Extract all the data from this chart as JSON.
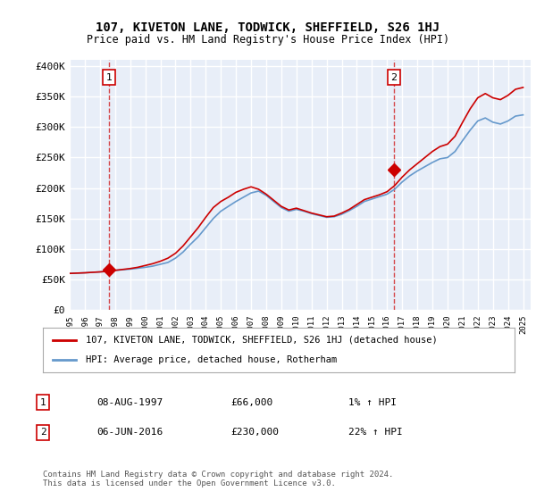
{
  "title": "107, KIVETON LANE, TODWICK, SHEFFIELD, S26 1HJ",
  "subtitle": "Price paid vs. HM Land Registry's House Price Index (HPI)",
  "legend_line1": "107, KIVETON LANE, TODWICK, SHEFFIELD, S26 1HJ (detached house)",
  "legend_line2": "HPI: Average price, detached house, Rotherham",
  "annotation1": {
    "label": "1",
    "date": "08-AUG-1997",
    "price": "£66,000",
    "hpi": "1% ↑ HPI",
    "year": 1997.6,
    "value": 66000
  },
  "annotation2": {
    "label": "2",
    "date": "06-JUN-2016",
    "price": "£230,000",
    "hpi": "22% ↑ HPI",
    "year": 2016.44,
    "value": 230000
  },
  "ylabel_ticks": [
    "£0",
    "£50K",
    "£100K",
    "£150K",
    "£200K",
    "£250K",
    "£300K",
    "£350K",
    "£400K"
  ],
  "ytick_values": [
    0,
    50000,
    100000,
    150000,
    200000,
    250000,
    300000,
    350000,
    400000
  ],
  "xmin": 1995.0,
  "xmax": 2025.5,
  "ymin": 0,
  "ymax": 410000,
  "sale_color": "#cc0000",
  "hpi_color": "#6699cc",
  "bg_color": "#e8eef8",
  "grid_color": "#ffffff",
  "footnote": "Contains HM Land Registry data © Crown copyright and database right 2024.\nThis data is licensed under the Open Government Licence v3.0.",
  "hpi_years": [
    1995,
    1995.5,
    1996,
    1996.5,
    1997,
    1997.5,
    1998,
    1998.5,
    1999,
    1999.5,
    2000,
    2000.5,
    2001,
    2001.5,
    2002,
    2002.5,
    2003,
    2003.5,
    2004,
    2004.5,
    2005,
    2005.5,
    2006,
    2006.5,
    2007,
    2007.5,
    2008,
    2008.5,
    2009,
    2009.5,
    2010,
    2010.5,
    2011,
    2011.5,
    2012,
    2012.5,
    2013,
    2013.5,
    2014,
    2014.5,
    2015,
    2015.5,
    2016,
    2016.5,
    2017,
    2017.5,
    2018,
    2018.5,
    2019,
    2019.5,
    2020,
    2020.5,
    2021,
    2021.5,
    2022,
    2022.5,
    2023,
    2023.5,
    2024,
    2024.5,
    2025
  ],
  "hpi_values": [
    60000,
    60500,
    61000,
    61800,
    62500,
    63500,
    65000,
    66000,
    67000,
    68500,
    70000,
    72000,
    75000,
    78000,
    85000,
    95000,
    108000,
    120000,
    135000,
    150000,
    162000,
    170000,
    178000,
    185000,
    192000,
    195000,
    188000,
    178000,
    168000,
    162000,
    165000,
    162000,
    158000,
    155000,
    152000,
    153000,
    157000,
    163000,
    170000,
    178000,
    182000,
    186000,
    190000,
    198000,
    210000,
    220000,
    228000,
    235000,
    242000,
    248000,
    250000,
    260000,
    278000,
    295000,
    310000,
    315000,
    308000,
    305000,
    310000,
    318000,
    320000
  ],
  "price_years": [
    1995,
    1995.5,
    1996,
    1996.5,
    1997,
    1997.5,
    1998,
    1998.5,
    1999,
    1999.5,
    2000,
    2000.5,
    2001,
    2001.5,
    2002,
    2002.5,
    2003,
    2003.5,
    2004,
    2004.5,
    2005,
    2005.5,
    2006,
    2006.5,
    2007,
    2007.5,
    2008,
    2008.5,
    2009,
    2009.5,
    2010,
    2010.5,
    2011,
    2011.5,
    2012,
    2012.5,
    2013,
    2013.5,
    2014,
    2014.5,
    2015,
    2015.5,
    2016,
    2016.5,
    2017,
    2017.5,
    2018,
    2018.5,
    2019,
    2019.5,
    2020,
    2020.5,
    2021,
    2021.5,
    2022,
    2022.5,
    2023,
    2023.5,
    2024,
    2024.5,
    2025
  ],
  "price_values": [
    60000,
    60500,
    61000,
    61800,
    62500,
    63500,
    65000,
    66500,
    68000,
    70000,
    73000,
    76000,
    80000,
    85000,
    93000,
    105000,
    120000,
    135000,
    152000,
    168000,
    178000,
    185000,
    193000,
    198000,
    202000,
    198000,
    190000,
    180000,
    170000,
    164000,
    167000,
    163000,
    159000,
    156000,
    153000,
    154000,
    159000,
    165000,
    173000,
    181000,
    185000,
    189000,
    194000,
    204000,
    218000,
    230000,
    240000,
    250000,
    260000,
    268000,
    272000,
    285000,
    308000,
    330000,
    348000,
    355000,
    348000,
    345000,
    352000,
    362000,
    365000
  ]
}
